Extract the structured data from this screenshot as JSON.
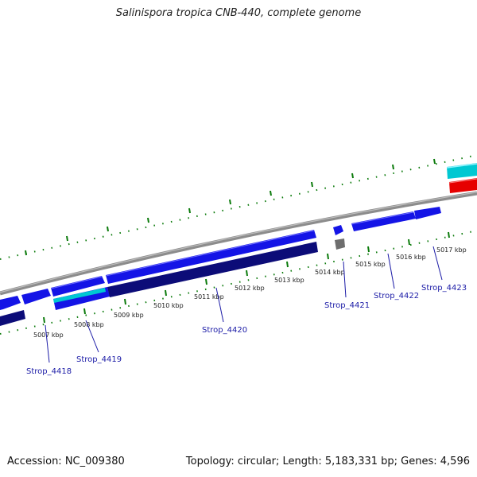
{
  "title": "Salinispora tropica CNB-440, complete genome",
  "footer": {
    "accession": "Accession: NC_009380",
    "summary": "Topology: circular; Length: 5,183,331 bp; Genes: 4,596"
  },
  "colors": {
    "forward_gene": "#1414e6",
    "reverse_gene": "#0c0c78",
    "cyan_gene": "#00c8d2",
    "red_gene": "#e60000",
    "backbone": "#8c8c8c",
    "ticks": "#0a7a0a",
    "label_text": "#1a1aa6"
  },
  "tick_labels": [
    "5007 kbp",
    "5008 kbp",
    "5009 kbp",
    "5010 kbp",
    "5011 kbp",
    "5012 kbp",
    "5013 kbp",
    "5014 kbp",
    "5015 kbp",
    "5016 kbp",
    "5017 kbp"
  ],
  "gene_labels": [
    "Strop_4418",
    "Strop_4419",
    "Strop_4420",
    "Strop_4421",
    "Strop_4422",
    "Strop_4423"
  ]
}
